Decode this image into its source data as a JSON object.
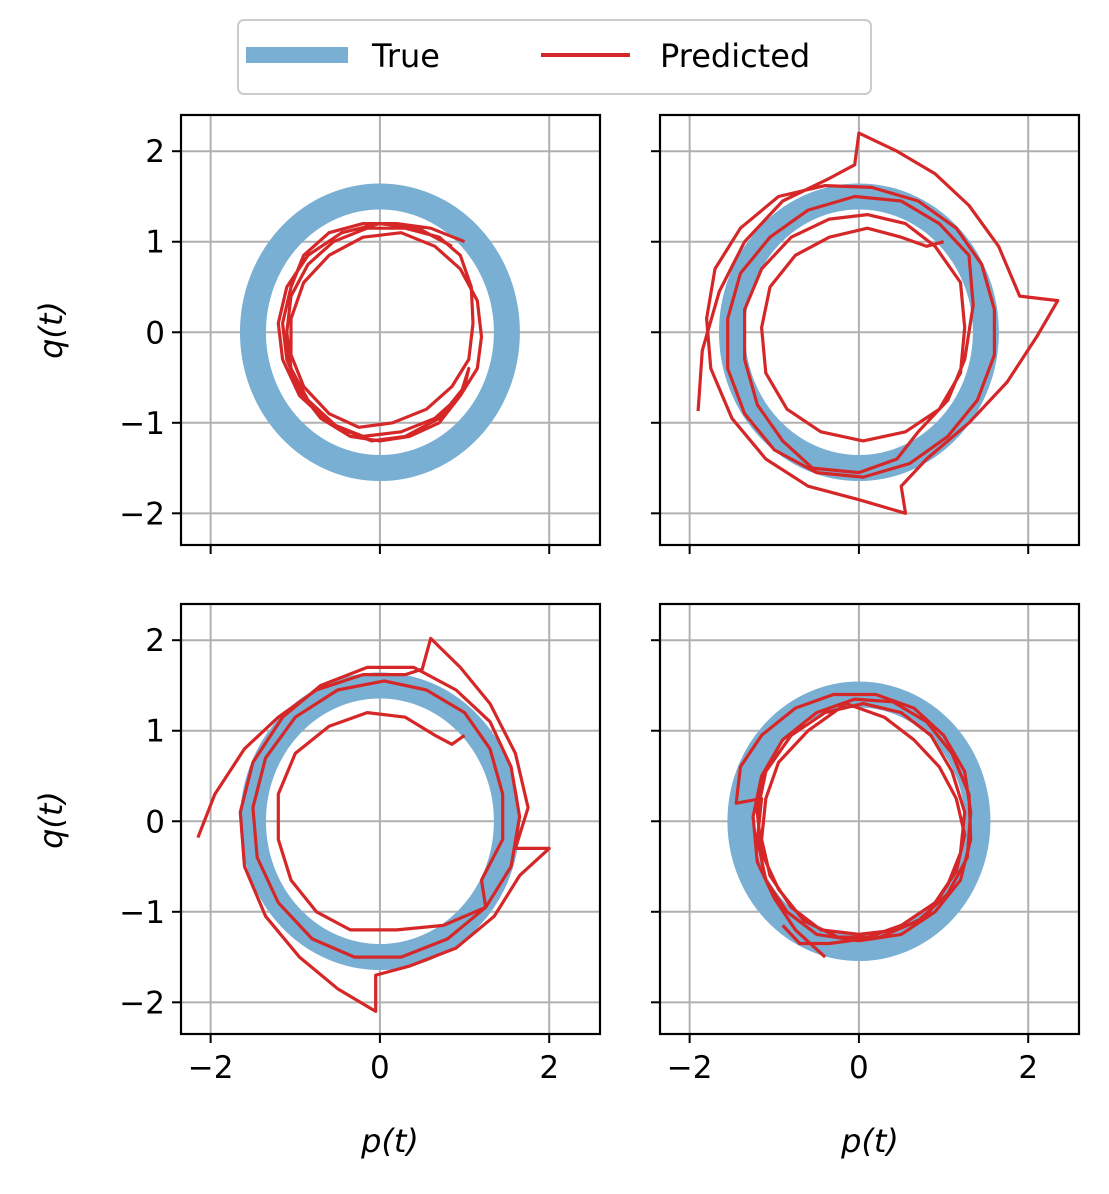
{
  "chart_data": {
    "type": "line",
    "legend": {
      "position": "top-center",
      "entries": [
        {
          "label": "True",
          "color": "#7aafd4"
        },
        {
          "label": "Predicted",
          "color": "#d62728"
        }
      ]
    },
    "xlabel": "p(t)",
    "ylabel": "q(t)",
    "xlim": [
      -2.35,
      2.6
    ],
    "ylim": [
      -2.35,
      2.4
    ],
    "xticks": [
      -2,
      0,
      2
    ],
    "yticks": [
      -2,
      -1,
      0,
      1,
      2
    ],
    "grid": true,
    "colors": {
      "true": "#7aafd4",
      "predicted": "#d62728"
    },
    "panels": [
      {
        "true_radius": 1.5,
        "predicted": [
          [
            1.0,
            1.0
          ],
          [
            0.6,
            1.15
          ],
          [
            0.2,
            1.2
          ],
          [
            -0.2,
            1.2
          ],
          [
            -0.6,
            1.1
          ],
          [
            -0.9,
            0.85
          ],
          [
            -1.05,
            0.5
          ],
          [
            -1.15,
            0.1
          ],
          [
            -1.1,
            -0.3
          ],
          [
            -0.95,
            -0.65
          ],
          [
            -0.7,
            -0.95
          ],
          [
            -0.35,
            -1.15
          ],
          [
            0.0,
            -1.2
          ],
          [
            0.35,
            -1.15
          ],
          [
            0.7,
            -1.0
          ],
          [
            0.95,
            -0.7
          ],
          [
            1.05,
            -0.4
          ],
          [
            1.0,
            -0.6
          ],
          [
            0.7,
            -0.95
          ],
          [
            0.3,
            -1.15
          ],
          [
            -0.1,
            -1.2
          ],
          [
            -0.5,
            -1.05
          ],
          [
            -0.85,
            -0.75
          ],
          [
            -1.05,
            -0.4
          ],
          [
            -1.1,
            0.0
          ],
          [
            -1.05,
            0.4
          ],
          [
            -0.85,
            0.75
          ],
          [
            -0.55,
            1.0
          ],
          [
            -0.15,
            1.15
          ],
          [
            0.3,
            1.15
          ],
          [
            0.7,
            1.05
          ],
          [
            0.95,
            0.85
          ],
          [
            1.08,
            0.5
          ],
          [
            1.1,
            0.1
          ],
          [
            1.05,
            -0.3
          ],
          [
            0.85,
            -0.6
          ],
          [
            0.55,
            -0.85
          ],
          [
            0.15,
            -1.0
          ],
          [
            -0.25,
            -1.05
          ],
          [
            -0.6,
            -0.9
          ],
          [
            -0.9,
            -0.6
          ],
          [
            -1.05,
            -0.25
          ],
          [
            -1.05,
            0.15
          ],
          [
            -0.9,
            0.55
          ],
          [
            -0.6,
            0.85
          ],
          [
            -0.2,
            1.05
          ],
          [
            0.25,
            1.1
          ],
          [
            0.65,
            0.95
          ],
          [
            0.95,
            0.7
          ],
          [
            1.15,
            0.35
          ],
          [
            1.2,
            -0.05
          ],
          [
            1.15,
            -0.4
          ],
          [
            0.95,
            -0.7
          ],
          [
            0.65,
            -0.95
          ],
          [
            0.25,
            -1.1
          ],
          [
            -0.2,
            -1.15
          ],
          [
            -0.6,
            -1.0
          ],
          [
            -0.95,
            -0.7
          ],
          [
            -1.15,
            -0.3
          ],
          [
            -1.2,
            0.1
          ],
          [
            -1.1,
            0.5
          ],
          [
            -0.85,
            0.85
          ],
          [
            -0.45,
            1.1
          ],
          [
            0.0,
            1.2
          ],
          [
            0.45,
            1.15
          ],
          [
            0.85,
            0.95
          ]
        ]
      },
      {
        "true_radius": 1.5,
        "predicted": [
          [
            -1.9,
            -0.87
          ],
          [
            -1.85,
            -0.2
          ],
          [
            -1.65,
            0.45
          ],
          [
            -1.35,
            1.0
          ],
          [
            -0.9,
            1.45
          ],
          [
            -0.35,
            1.7
          ],
          [
            -0.05,
            1.85
          ],
          [
            0.0,
            2.2
          ],
          [
            0.45,
            2.0
          ],
          [
            0.9,
            1.75
          ],
          [
            1.3,
            1.4
          ],
          [
            1.65,
            0.95
          ],
          [
            1.9,
            0.4
          ],
          [
            2.35,
            0.35
          ],
          [
            2.1,
            -0.05
          ],
          [
            1.75,
            -0.55
          ],
          [
            1.3,
            -1.0
          ],
          [
            0.8,
            -1.4
          ],
          [
            0.5,
            -1.7
          ],
          [
            0.55,
            -2.0
          ],
          [
            0.0,
            -1.85
          ],
          [
            -0.6,
            -1.7
          ],
          [
            -1.1,
            -1.4
          ],
          [
            -1.5,
            -0.95
          ],
          [
            -1.75,
            -0.4
          ],
          [
            -1.8,
            0.15
          ],
          [
            -1.7,
            0.7
          ],
          [
            -1.4,
            1.15
          ],
          [
            -0.95,
            1.5
          ],
          [
            -0.4,
            1.62
          ],
          [
            0.15,
            1.6
          ],
          [
            0.7,
            1.45
          ],
          [
            1.15,
            1.15
          ],
          [
            1.45,
            0.75
          ],
          [
            1.6,
            0.25
          ],
          [
            1.6,
            -0.25
          ],
          [
            1.4,
            -0.75
          ],
          [
            1.05,
            -1.15
          ],
          [
            0.6,
            -1.45
          ],
          [
            0.05,
            -1.6
          ],
          [
            -0.5,
            -1.55
          ],
          [
            -1.0,
            -1.3
          ],
          [
            -1.35,
            -0.9
          ],
          [
            -1.55,
            -0.4
          ],
          [
            -1.55,
            0.15
          ],
          [
            -1.4,
            0.65
          ],
          [
            -1.05,
            1.05
          ],
          [
            -0.6,
            1.35
          ],
          [
            -0.05,
            1.5
          ],
          [
            0.5,
            1.45
          ],
          [
            0.95,
            1.2
          ],
          [
            1.3,
            0.85
          ],
          [
            1.35,
            0.3
          ],
          [
            1.25,
            -0.3
          ],
          [
            1.05,
            -0.75
          ],
          [
            0.7,
            -1.1
          ],
          [
            0.45,
            -1.4
          ],
          [
            0.0,
            -1.55
          ],
          [
            -0.55,
            -1.5
          ],
          [
            -0.9,
            -1.2
          ],
          [
            -1.2,
            -0.8
          ],
          [
            -1.35,
            -0.3
          ],
          [
            -1.35,
            0.25
          ],
          [
            -1.15,
            0.7
          ],
          [
            -0.8,
            1.05
          ],
          [
            -0.35,
            1.25
          ],
          [
            0.1,
            1.3
          ],
          [
            0.55,
            1.2
          ],
          [
            0.9,
            0.95
          ],
          [
            1.2,
            0.55
          ],
          [
            1.25,
            0.05
          ],
          [
            1.2,
            -0.45
          ],
          [
            0.95,
            -0.85
          ],
          [
            0.55,
            -1.1
          ],
          [
            0.05,
            -1.2
          ],
          [
            -0.45,
            -1.1
          ],
          [
            -0.85,
            -0.85
          ],
          [
            -1.1,
            -0.45
          ],
          [
            -1.15,
            0.05
          ],
          [
            -1.05,
            0.5
          ],
          [
            -0.75,
            0.85
          ],
          [
            -0.35,
            1.05
          ],
          [
            0.1,
            1.15
          ],
          [
            0.5,
            1.05
          ],
          [
            0.8,
            0.95
          ],
          [
            1.0,
            1.0
          ]
        ]
      },
      {
        "true_radius": 1.5,
        "predicted": [
          [
            -2.15,
            -0.18
          ],
          [
            -1.95,
            0.3
          ],
          [
            -1.6,
            0.8
          ],
          [
            -1.2,
            1.15
          ],
          [
            -0.75,
            1.45
          ],
          [
            -0.2,
            1.62
          ],
          [
            0.3,
            1.62
          ],
          [
            0.5,
            1.68
          ],
          [
            0.6,
            2.02
          ],
          [
            0.95,
            1.7
          ],
          [
            1.3,
            1.3
          ],
          [
            1.6,
            0.75
          ],
          [
            1.75,
            0.15
          ],
          [
            1.6,
            -0.3
          ],
          [
            2.0,
            -0.3
          ],
          [
            1.65,
            -0.6
          ],
          [
            1.35,
            -1.05
          ],
          [
            0.9,
            -1.4
          ],
          [
            0.35,
            -1.6
          ],
          [
            -0.05,
            -1.7
          ],
          [
            -0.05,
            -2.1
          ],
          [
            -0.5,
            -1.85
          ],
          [
            -0.95,
            -1.5
          ],
          [
            -1.35,
            -1.05
          ],
          [
            -1.6,
            -0.5
          ],
          [
            -1.65,
            0.1
          ],
          [
            -1.5,
            0.65
          ],
          [
            -1.15,
            1.15
          ],
          [
            -0.7,
            1.5
          ],
          [
            -0.15,
            1.7
          ],
          [
            0.4,
            1.7
          ],
          [
            0.9,
            1.45
          ],
          [
            1.3,
            1.1
          ],
          [
            1.55,
            0.6
          ],
          [
            1.65,
            0.05
          ],
          [
            1.55,
            -0.5
          ],
          [
            1.25,
            -0.95
          ],
          [
            0.8,
            -1.3
          ],
          [
            0.25,
            -1.5
          ],
          [
            -0.3,
            -1.5
          ],
          [
            -0.8,
            -1.3
          ],
          [
            -1.2,
            -0.9
          ],
          [
            -1.45,
            -0.4
          ],
          [
            -1.5,
            0.15
          ],
          [
            -1.35,
            0.7
          ],
          [
            -1.0,
            1.15
          ],
          [
            -0.5,
            1.45
          ],
          [
            0.05,
            1.55
          ],
          [
            0.55,
            1.45
          ],
          [
            1.0,
            1.2
          ],
          [
            1.3,
            0.8
          ],
          [
            1.45,
            0.3
          ],
          [
            1.45,
            -0.2
          ],
          [
            1.2,
            -0.65
          ],
          [
            1.25,
            -0.95
          ],
          [
            0.75,
            -1.15
          ],
          [
            0.2,
            -1.2
          ],
          [
            -0.35,
            -1.2
          ],
          [
            -0.75,
            -1.0
          ],
          [
            -1.05,
            -0.65
          ],
          [
            -1.2,
            -0.2
          ],
          [
            -1.2,
            0.3
          ],
          [
            -1.0,
            0.75
          ],
          [
            -0.6,
            1.05
          ],
          [
            -0.15,
            1.2
          ],
          [
            0.3,
            1.15
          ],
          [
            0.65,
            0.95
          ],
          [
            0.85,
            0.85
          ],
          [
            1.0,
            0.95
          ]
        ]
      },
      {
        "true_radius": 1.4,
        "predicted": [
          [
            -0.4,
            -1.5
          ],
          [
            -0.75,
            -1.2
          ],
          [
            -1.0,
            -0.85
          ],
          [
            -1.2,
            -0.45
          ],
          [
            -1.25,
            0.05
          ],
          [
            -1.15,
            0.5
          ],
          [
            -0.9,
            0.9
          ],
          [
            -0.5,
            1.2
          ],
          [
            -0.05,
            1.35
          ],
          [
            0.4,
            1.32
          ],
          [
            0.8,
            1.1
          ],
          [
            1.1,
            0.75
          ],
          [
            1.3,
            0.3
          ],
          [
            1.32,
            -0.2
          ],
          [
            1.2,
            -0.65
          ],
          [
            0.9,
            -1.0
          ],
          [
            0.5,
            -1.25
          ],
          [
            0.0,
            -1.32
          ],
          [
            -0.5,
            -1.25
          ],
          [
            -0.85,
            -1.0
          ],
          [
            -1.1,
            -0.65
          ],
          [
            -1.2,
            -0.2
          ],
          [
            -1.15,
            0.25
          ],
          [
            -1.45,
            0.2
          ],
          [
            -1.4,
            0.6
          ],
          [
            -1.15,
            0.95
          ],
          [
            -0.75,
            1.25
          ],
          [
            -0.3,
            1.4
          ],
          [
            0.2,
            1.4
          ],
          [
            0.65,
            1.25
          ],
          [
            1.0,
            0.95
          ],
          [
            1.25,
            0.55
          ],
          [
            1.32,
            0.1
          ],
          [
            1.28,
            -0.4
          ],
          [
            1.05,
            -0.8
          ],
          [
            0.7,
            -1.1
          ],
          [
            0.25,
            -1.28
          ],
          [
            -0.25,
            -1.28
          ],
          [
            -0.65,
            -1.1
          ],
          [
            -0.95,
            -0.75
          ],
          [
            -1.15,
            -0.35
          ],
          [
            -1.2,
            0.1
          ],
          [
            -1.1,
            0.55
          ],
          [
            -0.8,
            0.95
          ],
          [
            -0.4,
            1.2
          ],
          [
            0.05,
            1.3
          ],
          [
            0.5,
            1.2
          ],
          [
            0.85,
            0.95
          ],
          [
            1.1,
            0.55
          ],
          [
            1.25,
            0.1
          ],
          [
            1.2,
            -0.35
          ],
          [
            1.05,
            -0.7
          ],
          [
            0.8,
            -1.05
          ],
          [
            0.45,
            -1.2
          ],
          [
            0.0,
            -1.25
          ],
          [
            -0.45,
            -1.2
          ],
          [
            -0.8,
            -0.95
          ],
          [
            -1.05,
            -0.6
          ],
          [
            -1.15,
            -0.2
          ],
          [
            -1.1,
            0.25
          ],
          [
            -0.95,
            0.65
          ],
          [
            -0.6,
            1.0
          ],
          [
            -0.15,
            1.3
          ],
          [
            0.3,
            1.15
          ],
          [
            0.65,
            0.9
          ],
          [
            0.95,
            0.6
          ],
          [
            1.15,
            0.25
          ],
          [
            1.25,
            -0.15
          ],
          [
            1.15,
            -0.55
          ],
          [
            0.9,
            -0.9
          ],
          [
            0.5,
            -1.15
          ],
          [
            0.05,
            -1.3
          ],
          [
            -0.35,
            -1.35
          ],
          [
            -0.7,
            -1.35
          ],
          [
            -0.9,
            -1.15
          ]
        ]
      }
    ]
  }
}
